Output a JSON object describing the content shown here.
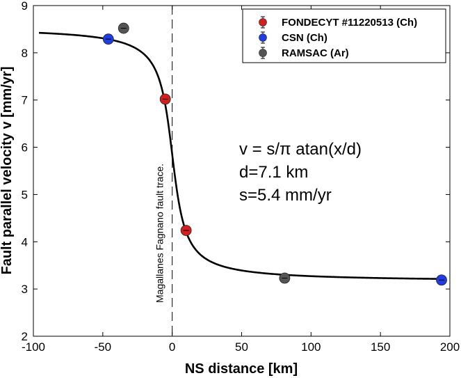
{
  "chart_data": {
    "type": "scatter",
    "xlabel": "NS distance [km]",
    "ylabel": "Fault parallel velocity v [mm/yr]",
    "xlim": [
      -100,
      200
    ],
    "ylim": [
      2,
      9
    ],
    "xticks": [
      -100,
      -50,
      0,
      50,
      100,
      150,
      200
    ],
    "yticks": [
      2,
      3,
      4,
      5,
      6,
      7,
      8,
      9
    ],
    "grid": false,
    "legend_position": "top-right",
    "series": [
      {
        "name": "FONDECYT #11220513 (Ch)",
        "color": "#d41f1f",
        "points": [
          [
            -5,
            7.02
          ],
          [
            10,
            4.24
          ]
        ]
      },
      {
        "name": "CSN (Ch)",
        "color": "#1f3de0",
        "points": [
          [
            -46,
            8.29
          ],
          [
            194,
            3.19
          ]
        ]
      },
      {
        "name": "RAMSAC (Ar)",
        "color": "#555555",
        "points": [
          [
            -35,
            8.52
          ],
          [
            81,
            3.23
          ]
        ]
      }
    ],
    "model_curve": {
      "name": "v = s/π atan(x/d)",
      "s": 5.4,
      "d": 7.1,
      "offset": 5.85,
      "x_range": [
        -96,
        194
      ],
      "color": "#000000"
    },
    "fault_line": {
      "x": 0,
      "label": "Magallanes Fagnano fault trace."
    },
    "annotations": [
      "v = s/π atan(x/d)",
      "d=7.1 km",
      "s=5.4 mm/yr"
    ]
  }
}
